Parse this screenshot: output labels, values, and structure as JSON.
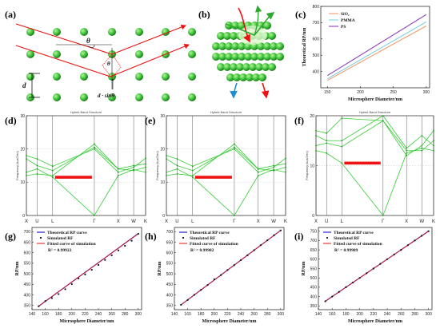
{
  "panel_labels": [
    "(a)",
    "(b)",
    "(c)",
    "(d)",
    "(e)",
    "(f)",
    "(g)",
    "(h)",
    "(i)"
  ],
  "diagram_a": {
    "theta": "θ",
    "d": "d",
    "formula": "d · sinθ"
  },
  "colors": {
    "green": "#33cc33",
    "red": "#ee1111",
    "blue": "#2222cc",
    "sio2": "#f29a6a",
    "pmma": "#7dd3e0",
    "ps": "#8a3cb8"
  },
  "chart_data": [
    {
      "id": "c",
      "type": "line",
      "xlabel": "Microsphere Diameter/nm",
      "ylabel": "Theoretical RP/nm",
      "xlim": [
        140,
        305
      ],
      "ylim": [
        300,
        800
      ],
      "xticks": [
        "150",
        "200",
        "250",
        "300"
      ],
      "yticks": [
        "400",
        "500",
        "600",
        "700",
        "800"
      ],
      "legend": "top-left",
      "series": [
        {
          "name": "SiO₂",
          "color": "#f29a6a",
          "x": [
            150,
            300
          ],
          "y": [
            345,
            680
          ]
        },
        {
          "name": "PMMA",
          "color": "#7dd3e0",
          "x": [
            150,
            300
          ],
          "y": [
            355,
            705
          ]
        },
        {
          "name": "PS",
          "color": "#8a3cb8",
          "x": [
            150,
            300
          ],
          "y": [
            375,
            750
          ]
        }
      ]
    },
    {
      "id": "d",
      "type": "line",
      "title": "Hybrid Band Structure",
      "ylabel": "Frequency (k₀a/2πc)",
      "ylim": [
        0,
        30
      ],
      "yticks": [
        "0",
        "10",
        "20",
        "30"
      ],
      "kpoints": [
        "X",
        "U",
        "L",
        "Γ",
        "X",
        "W",
        "K"
      ],
      "gap": [
        11,
        12
      ],
      "bands": [
        [
          18,
          17,
          14.8,
          20,
          13,
          14.5,
          17.2
        ],
        [
          17,
          15,
          13.5,
          20.5,
          14,
          15,
          15.5
        ],
        [
          12,
          12.5,
          12,
          21.5,
          14,
          13.5,
          14.5
        ],
        [
          13,
          14,
          11.5,
          0,
          12,
          13.8,
          13
        ]
      ]
    },
    {
      "id": "e",
      "type": "line",
      "title": "Hybrid Band Structure",
      "ylabel": "Frequency (k₀a/2πc)",
      "ylim": [
        0,
        30
      ],
      "yticks": [
        "0",
        "10",
        "20",
        "30"
      ],
      "kpoints": [
        "X",
        "U",
        "L",
        "Γ",
        "X",
        "W",
        "K"
      ],
      "gap": [
        11,
        12
      ],
      "bands": [
        [
          18,
          17,
          14.8,
          20,
          13,
          14.5,
          17.2
        ],
        [
          17,
          15,
          13.5,
          20.5,
          14,
          15,
          15.5
        ],
        [
          12,
          12.5,
          12,
          21.5,
          14,
          13.5,
          14.5
        ],
        [
          13,
          14,
          11.5,
          0,
          12,
          13.8,
          13
        ]
      ]
    },
    {
      "id": "f",
      "type": "line",
      "title": "Hybrid Band Structure",
      "ylabel": "Frequency (k₀a/2πc)",
      "ylim": [
        0,
        20
      ],
      "yticks": [
        "0",
        "10",
        "20"
      ],
      "kpoints": [
        "X",
        "U",
        "L",
        "Γ",
        "X",
        "W",
        "K"
      ],
      "gap": [
        10,
        11
      ],
      "bands": [
        [
          17,
          16.5,
          19.5,
          19,
          12,
          14,
          17
        ],
        [
          16,
          15,
          15,
          20,
          13.5,
          16,
          14
        ],
        [
          14,
          14.5,
          13.8,
          19,
          13,
          13,
          15
        ],
        [
          13,
          12.5,
          10.5,
          0,
          12.5,
          13.5,
          13
        ]
      ]
    },
    {
      "id": "g",
      "type": "scatter",
      "xlabel": "Microsphere Diameter/nm",
      "ylabel": "RP/nm",
      "xlim": [
        140,
        305
      ],
      "ylim": [
        330,
        720
      ],
      "xticks": [
        "140",
        "160",
        "180",
        "200",
        "220",
        "240",
        "260",
        "280",
        "300"
      ],
      "yticks": [
        "350",
        "400",
        "450",
        "500",
        "550",
        "600",
        "650",
        "700"
      ],
      "legend": [
        "Theoretical RP curve",
        "Simulated RF",
        "Fitted curve of simulation"
      ],
      "r2": "R² = 0.99922",
      "theory": {
        "x": [
          150,
          300
        ],
        "y": [
          346,
          691
        ]
      },
      "fit": {
        "x": [
          150,
          300
        ],
        "y": [
          347,
          690
        ]
      },
      "points_x": [
        150,
        160,
        170,
        180,
        190,
        200,
        210,
        220,
        230,
        240,
        250,
        260,
        270,
        280,
        290,
        300
      ],
      "points_y": [
        346,
        371,
        385,
        404,
        427,
        451,
        478,
        497,
        519,
        542,
        566,
        588,
        611,
        633,
        657,
        690
      ]
    },
    {
      "id": "h",
      "type": "scatter",
      "xlabel": "Microsphere Diameter/nm",
      "ylabel": "RP/nm",
      "xlim": [
        140,
        305
      ],
      "ylim": [
        330,
        720
      ],
      "xticks": [
        "140",
        "160",
        "180",
        "200",
        "220",
        "240",
        "260",
        "280",
        "300"
      ],
      "yticks": [
        "350",
        "400",
        "450",
        "500",
        "550",
        "600",
        "650",
        "700"
      ],
      "legend": [
        "Theoretical RP curve",
        "Simulated RF",
        "Fitted curve of simulation"
      ],
      "r2": "R² = 0.99982",
      "theory": {
        "x": [
          150,
          300
        ],
        "y": [
          353,
          706
        ]
      },
      "fit": {
        "x": [
          150,
          300
        ],
        "y": [
          353,
          706
        ]
      },
      "points_x": [
        150,
        160,
        170,
        180,
        190,
        200,
        210,
        220,
        230,
        240,
        250,
        260,
        270,
        280,
        290,
        300
      ],
      "points_y": [
        353,
        376,
        400,
        424,
        447,
        474,
        494,
        518,
        541,
        565,
        588,
        612,
        636,
        659,
        683,
        706
      ]
    },
    {
      "id": "i",
      "type": "scatter",
      "xlabel": "Microsphere Diameter/nm",
      "ylabel": "RP/nm",
      "xlim": [
        140,
        305
      ],
      "ylim": [
        330,
        770
      ],
      "xticks": [
        "140",
        "160",
        "180",
        "200",
        "220",
        "240",
        "260",
        "280",
        "300"
      ],
      "yticks": [
        "350",
        "400",
        "450",
        "500",
        "550",
        "600",
        "650",
        "700",
        "750"
      ],
      "legend": [
        "Theoretical RP curve",
        "Simulated RF",
        "Fitted curve of simulation"
      ],
      "r2": "R² = 0.99989",
      "theory": {
        "x": [
          150,
          300
        ],
        "y": [
          375,
          750
        ]
      },
      "fit": {
        "x": [
          150,
          300
        ],
        "y": [
          375,
          750
        ]
      },
      "points_x": [
        150,
        160,
        170,
        180,
        190,
        200,
        210,
        220,
        230,
        240,
        250,
        260,
        270,
        280,
        290,
        300
      ],
      "points_y": [
        375,
        400,
        425,
        450,
        475,
        500,
        525,
        550,
        575,
        600,
        625,
        650,
        675,
        700,
        725,
        750
      ]
    }
  ]
}
